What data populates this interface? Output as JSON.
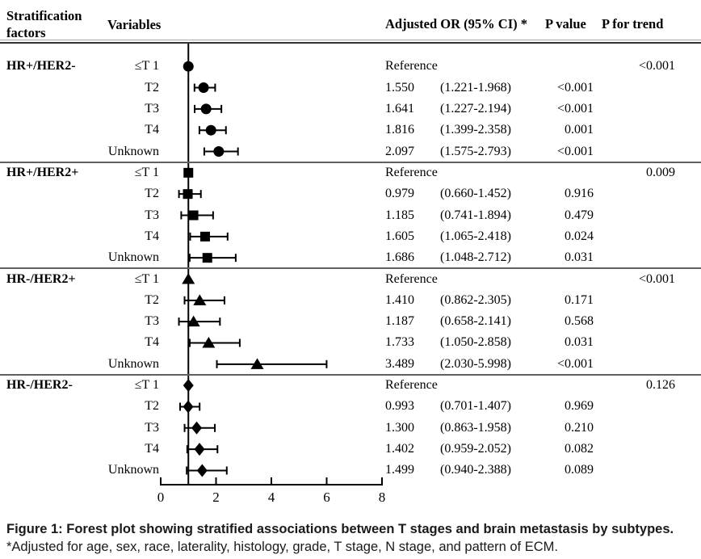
{
  "header": {
    "col_stratification": "Stratification factors",
    "col_variables": "Variables",
    "col_or": "Adjusted OR (95% CI) *",
    "col_p": "P value",
    "col_trend": "P for trend"
  },
  "chart_data": {
    "type": "forest",
    "x_ticks": [
      0,
      2,
      4,
      6,
      8
    ],
    "xlim": [
      0,
      8
    ],
    "reference_line_x": 1,
    "reference_label": "Reference",
    "marker_color": "#000000",
    "groups": [
      {
        "factor": "HR+/HER2-",
        "marker": "circle",
        "p_for_trend": "<0.001",
        "rows": [
          {
            "variable": "≤T 1",
            "reference": true,
            "or": 1,
            "or_text": "Reference"
          },
          {
            "variable": "T2",
            "or": 1.55,
            "ci_lo": 1.221,
            "ci_hi": 1.968,
            "or_text": "1.550",
            "ci_text": "(1.221-1.968)",
            "p": "<0.001"
          },
          {
            "variable": "T3",
            "or": 1.641,
            "ci_lo": 1.227,
            "ci_hi": 2.194,
            "or_text": "1.641",
            "ci_text": "(1.227-2.194)",
            "p": "<0.001"
          },
          {
            "variable": "T4",
            "or": 1.816,
            "ci_lo": 1.399,
            "ci_hi": 2.358,
            "or_text": "1.816",
            "ci_text": "(1.399-2.358)",
            "p": "0.001"
          },
          {
            "variable": "Unknown",
            "or": 2.097,
            "ci_lo": 1.575,
            "ci_hi": 2.793,
            "or_text": "2.097",
            "ci_text": "(1.575-2.793)",
            "p": "<0.001"
          }
        ]
      },
      {
        "factor": "HR+/HER2+",
        "marker": "square",
        "p_for_trend": "0.009",
        "rows": [
          {
            "variable": "≤T 1",
            "reference": true,
            "or": 1,
            "or_text": "Reference"
          },
          {
            "variable": "T2",
            "or": 0.979,
            "ci_lo": 0.66,
            "ci_hi": 1.452,
            "or_text": "0.979",
            "ci_text": "(0.660-1.452)",
            "p": "0.916"
          },
          {
            "variable": "T3",
            "or": 1.185,
            "ci_lo": 0.741,
            "ci_hi": 1.894,
            "or_text": "1.185",
            "ci_text": "(0.741-1.894)",
            "p": "0.479"
          },
          {
            "variable": "T4",
            "or": 1.605,
            "ci_lo": 1.065,
            "ci_hi": 2.418,
            "or_text": "1.605",
            "ci_text": "(1.065-2.418)",
            "p": "0.024"
          },
          {
            "variable": "Unknown",
            "or": 1.686,
            "ci_lo": 1.048,
            "ci_hi": 2.712,
            "or_text": "1.686",
            "ci_text": "(1.048-2.712)",
            "p": "0.031"
          }
        ]
      },
      {
        "factor": "HR-/HER2+",
        "marker": "triangle",
        "p_for_trend": "<0.001",
        "rows": [
          {
            "variable": "≤T 1",
            "reference": true,
            "or": 1,
            "or_text": "Reference"
          },
          {
            "variable": "T2",
            "or": 1.41,
            "ci_lo": 0.862,
            "ci_hi": 2.305,
            "or_text": "1.410",
            "ci_text": "(0.862-2.305)",
            "p": "0.171"
          },
          {
            "variable": "T3",
            "or": 1.187,
            "ci_lo": 0.658,
            "ci_hi": 2.141,
            "or_text": "1.187",
            "ci_text": "(0.658-2.141)",
            "p": "0.568"
          },
          {
            "variable": "T4",
            "or": 1.733,
            "ci_lo": 1.05,
            "ci_hi": 2.858,
            "or_text": "1.733",
            "ci_text": "(1.050-2.858)",
            "p": "0.031"
          },
          {
            "variable": "Unknown",
            "or": 3.489,
            "ci_lo": 2.03,
            "ci_hi": 5.998,
            "or_text": "3.489",
            "ci_text": "(2.030-5.998)",
            "p": "<0.001"
          }
        ]
      },
      {
        "factor": "HR-/HER2-",
        "marker": "diamond",
        "p_for_trend": "0.126",
        "rows": [
          {
            "variable": "≤T 1",
            "reference": true,
            "or": 1,
            "or_text": "Reference"
          },
          {
            "variable": "T2",
            "or": 0.993,
            "ci_lo": 0.701,
            "ci_hi": 1.407,
            "or_text": "0.993",
            "ci_text": "(0.701-1.407)",
            "p": "0.969"
          },
          {
            "variable": "T3",
            "or": 1.3,
            "ci_lo": 0.863,
            "ci_hi": 1.958,
            "or_text": "1.300",
            "ci_text": "(0.863-1.958)",
            "p": "0.210"
          },
          {
            "variable": "T4",
            "or": 1.402,
            "ci_lo": 0.959,
            "ci_hi": 2.052,
            "or_text": "1.402",
            "ci_text": "(0.959-2.052)",
            "p": "0.082"
          },
          {
            "variable": "Unknown",
            "or": 1.499,
            "ci_lo": 0.94,
            "ci_hi": 2.388,
            "or_text": "1.499",
            "ci_text": "(0.940-2.388)",
            "p": "0.089"
          }
        ]
      }
    ]
  },
  "caption": {
    "bold": "Figure 1: Forest plot showing stratified associations between T stages and brain metastasis by subtypes.",
    "regular": " *Adjusted for age, sex, race, laterality, histology, grade, T stage, N stage, and pattern of ECM."
  }
}
